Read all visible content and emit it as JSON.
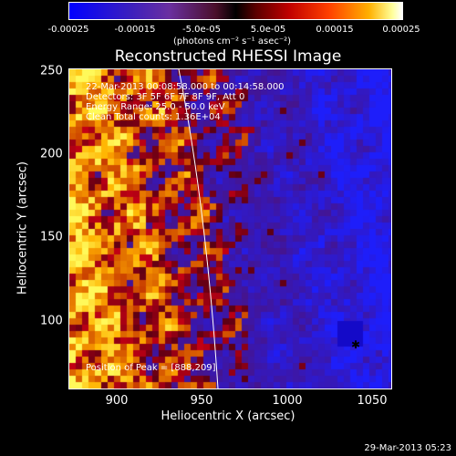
{
  "colorbar": {
    "tick_labels": [
      "-0.00025",
      "-0.00015",
      "-5.0e-05",
      "5.0e-05",
      "0.00015",
      "0.00025"
    ],
    "units": "(photons cm⁻² s⁻¹ asec⁻²)",
    "colors": [
      "#0000ff",
      "#6a2fa0",
      "#000000",
      "#c00000",
      "#ff4000",
      "#ffff99",
      "#ffffff"
    ]
  },
  "title": "Reconstructed RHESSI Image",
  "annotations": {
    "time_range": "22-Mar-2013 00:08:58.000 to 00:14:58.000",
    "detectors": "Detectors: 3F 5F 6F 7F 8F 9F, Att 0",
    "energy": "Energy Range: 25.0 - 50.0 keV",
    "clean": "Clean     Total counts: 1.36E+04",
    "peak": "Position of Peak = [888,209]"
  },
  "axes": {
    "xlabel": "Heliocentric X (arcsec)",
    "ylabel": "Heliocentric Y (arcsec)",
    "x_ticks": [
      "900",
      "950",
      "1000",
      "1050"
    ],
    "y_ticks": [
      "250",
      "200",
      "150",
      "100"
    ]
  },
  "datestamp": "29-Mar-2013 05:23"
}
